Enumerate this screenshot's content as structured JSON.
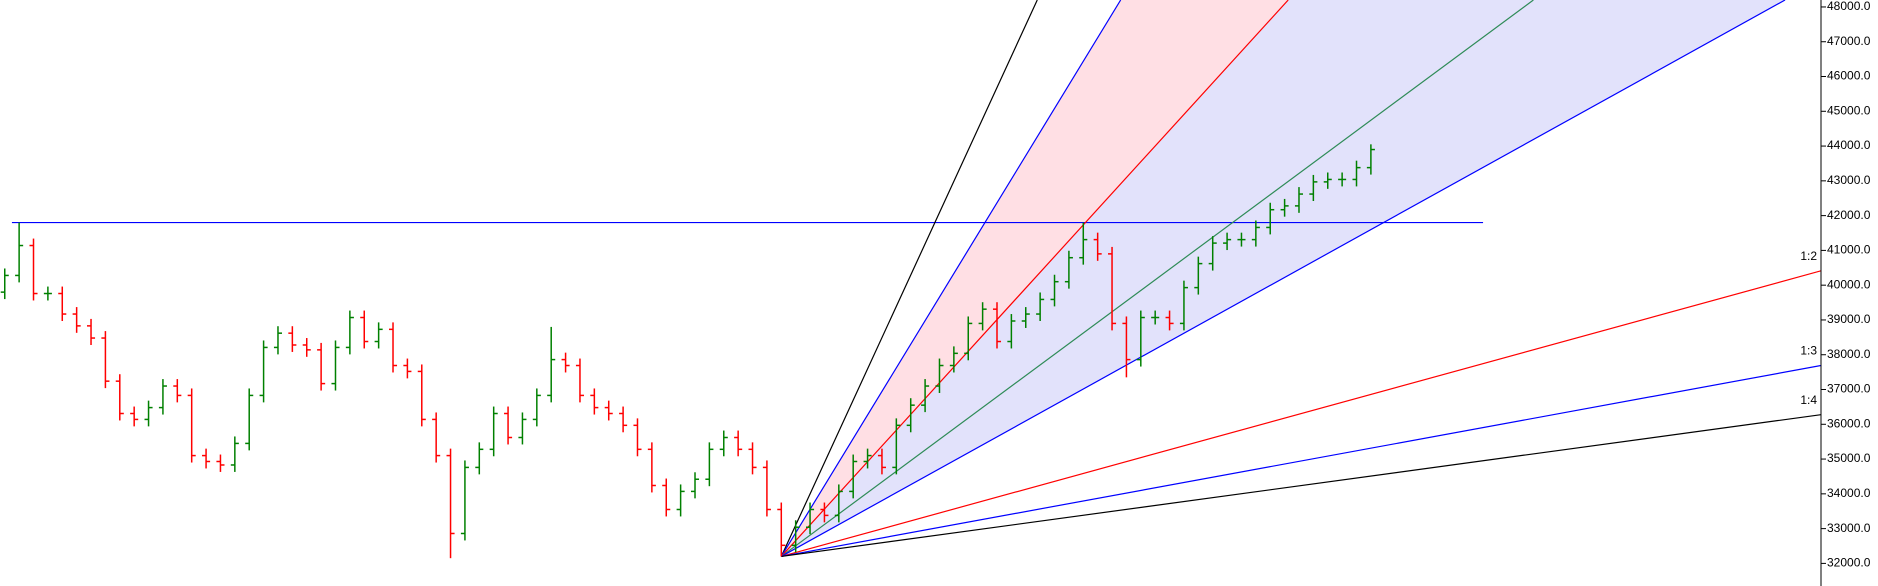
{
  "chart_data": {
    "type": "ohlc",
    "up_color": "#008000",
    "down_color": "#ff0000",
    "xlim": [
      -0.33,
      126.3
    ],
    "ylim": [
      31350,
      48200
    ],
    "yticks": [
      {
        "value": 32000,
        "label": "32000.0"
      },
      {
        "value": 33000,
        "label": "33000.0"
      },
      {
        "value": 34000,
        "label": "34000.0"
      },
      {
        "value": 35000,
        "label": "35000.0"
      },
      {
        "value": 36000,
        "label": "36000.0"
      },
      {
        "value": 37000,
        "label": "37000.0"
      },
      {
        "value": 38000,
        "label": "38000.0"
      },
      {
        "value": 39000,
        "label": "39000.0"
      },
      {
        "value": 40000,
        "label": "40000.0"
      },
      {
        "value": 41000,
        "label": "41000.0"
      },
      {
        "value": 42000,
        "label": "42000.0"
      },
      {
        "value": 43000,
        "label": "43000.0"
      },
      {
        "value": 44000,
        "label": "44000.0"
      },
      {
        "value": 45000,
        "label": "45000.0"
      },
      {
        "value": 46000,
        "label": "46000.0"
      },
      {
        "value": 47000,
        "label": "47000.0"
      },
      {
        "value": 48000,
        "label": "48000.0"
      }
    ],
    "open": [
      39800,
      40280,
      41140,
      39760,
      39760,
      39170,
      38830,
      38480,
      37240,
      36310,
      36140,
      36480,
      37100,
      36830,
      35100,
      34930,
      34830,
      35450,
      36830,
      38210,
      38620,
      38280,
      38140,
      37170,
      38210,
      39070,
      38380,
      38730,
      37690,
      37520,
      36140,
      35100,
      32860,
      34760,
      35280,
      36310,
      35620,
      36140,
      36830,
      37860,
      37690,
      36830,
      36480,
      36310,
      35970,
      35280,
      34240,
      33550,
      34070,
      34420,
      35280,
      35620,
      35280,
      34760,
      33550,
      32520,
      33040,
      33550,
      33380,
      34070,
      34930,
      35100,
      34760,
      35970,
      36550,
      37100,
      37690,
      38040,
      38900,
      39310,
      38380,
      38970,
      39170,
      39590,
      40100,
      40790,
      41310,
      40900,
      38900,
      37860,
      39070,
      39070,
      38900,
      39930,
      40620,
      41210,
      41310,
      41310,
      41660,
      42170,
      42280,
      42620,
      42970,
      43040,
      43040,
      43380
    ],
    "high": [
      40480,
      41800,
      41340,
      39960,
      39960,
      39370,
      39030,
      38680,
      37440,
      36510,
      36680,
      37300,
      37300,
      37030,
      35300,
      35130,
      35650,
      37030,
      38410,
      38820,
      38820,
      38480,
      38340,
      38410,
      39270,
      39270,
      38930,
      38930,
      37890,
      37720,
      36340,
      35300,
      34960,
      35480,
      36510,
      36510,
      36340,
      37030,
      38800,
      38060,
      37890,
      37030,
      36680,
      36510,
      36170,
      35480,
      34440,
      34270,
      34620,
      35480,
      35820,
      35820,
      35480,
      34960,
      33750,
      33240,
      33750,
      33750,
      34270,
      35130,
      35300,
      35300,
      36170,
      36750,
      37300,
      37890,
      38240,
      39100,
      39510,
      39510,
      39170,
      39370,
      39790,
      40300,
      40990,
      41800,
      41510,
      41100,
      39100,
      39270,
      39270,
      39270,
      40130,
      40820,
      41410,
      41510,
      41510,
      41860,
      42370,
      42480,
      42820,
      43170,
      43240,
      43240,
      43580,
      44050
    ],
    "low": [
      39600,
      40080,
      39560,
      39560,
      38970,
      38630,
      38280,
      37040,
      36110,
      35940,
      35940,
      36280,
      36630,
      34900,
      34730,
      34630,
      34630,
      35250,
      36630,
      38010,
      38080,
      37940,
      36970,
      36970,
      38010,
      38180,
      38180,
      37490,
      37320,
      35940,
      34900,
      32150,
      32660,
      34560,
      35080,
      35420,
      35420,
      35940,
      36630,
      37490,
      36630,
      36280,
      36110,
      35770,
      35080,
      34040,
      33350,
      33350,
      33870,
      34220,
      35080,
      35080,
      34560,
      33350,
      32200,
      32320,
      32840,
      33180,
      33180,
      33870,
      34730,
      34560,
      34560,
      35770,
      36350,
      36900,
      37490,
      37840,
      38700,
      38180,
      38180,
      38770,
      38970,
      39390,
      39900,
      40590,
      40700,
      38700,
      37350,
      37660,
      38870,
      38700,
      38700,
      39730,
      40420,
      41010,
      41110,
      41110,
      41460,
      41970,
      42080,
      42420,
      42770,
      42840,
      42840,
      43180
    ],
    "close": [
      40280,
      41140,
      39760,
      39760,
      39170,
      38830,
      38480,
      37240,
      36310,
      36140,
      36480,
      37100,
      36830,
      35100,
      34930,
      34830,
      35450,
      36830,
      38210,
      38620,
      38280,
      38140,
      37170,
      38210,
      39070,
      38380,
      38730,
      37690,
      37520,
      36140,
      35100,
      32860,
      34760,
      35280,
      36310,
      35620,
      36140,
      36830,
      37860,
      37690,
      36830,
      36480,
      36310,
      35970,
      35280,
      34240,
      33550,
      34070,
      34420,
      35280,
      35620,
      35280,
      34760,
      33550,
      32520,
      33040,
      33550,
      33380,
      34070,
      34930,
      35100,
      34760,
      35970,
      36550,
      37100,
      37690,
      38040,
      38900,
      39310,
      38380,
      38970,
      39170,
      39590,
      40100,
      40790,
      41310,
      40900,
      38900,
      37860,
      39070,
      39070,
      38900,
      39930,
      40620,
      41210,
      41310,
      41310,
      41660,
      42170,
      42280,
      42620,
      42970,
      43040,
      43040,
      43380,
      43900
    ],
    "hline": {
      "y": 41800,
      "x": [
        0.5,
        102.8
      ],
      "color": "#0000ff"
    },
    "fan": {
      "origin": [
        54,
        32200
      ],
      "lines": [
        {
          "end": [
            71.8,
            48200
          ],
          "color": "#000000"
        },
        {
          "end": [
            77.6,
            48200
          ],
          "color": "#0000ff",
          "fill": "#ffdfe4"
        },
        {
          "end": [
            89.25,
            48200
          ],
          "color": "#ff0000",
          "fill": "#e2e2fb"
        },
        {
          "end": [
            106.3,
            48200
          ],
          "color": "#2e8b57",
          "fill": "#e2e2fb"
        },
        {
          "end": [
            123.8,
            48200
          ],
          "color": "#0000ff"
        },
        {
          "end": [
            126.3,
            40414
          ],
          "color": "#ff0000",
          "label": "1:2"
        },
        {
          "end": [
            126.3,
            37690
          ],
          "color": "#0000ff",
          "label": "1:3"
        },
        {
          "end": [
            126.3,
            36276
          ],
          "color": "#000000",
          "label": "1:4"
        }
      ]
    }
  }
}
